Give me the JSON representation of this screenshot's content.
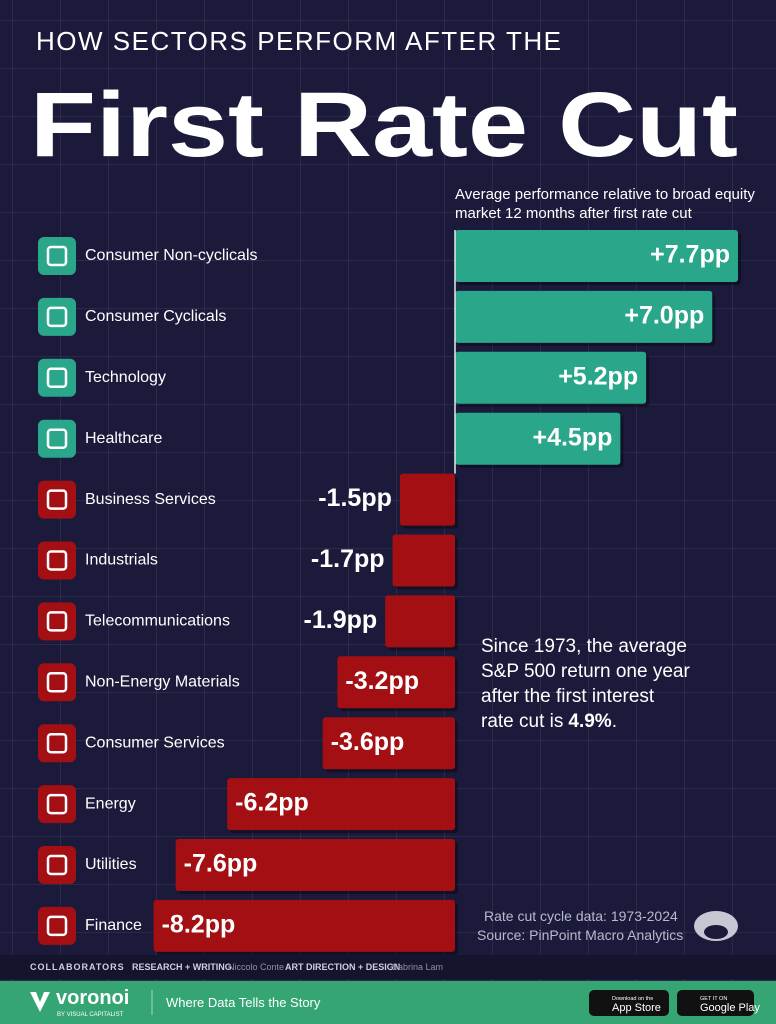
{
  "chart_data": {
    "type": "bar",
    "orientation": "horizontal",
    "kicker": "HOW SECTORS PERFORM AFTER THE",
    "title": "First Rate Cut",
    "subtitle": [
      "Average performance relative to broad equity",
      "market 12 months after first rate cut"
    ],
    "categories": [
      "Consumer Non-cyclicals",
      "Consumer Cyclicals",
      "Technology",
      "Healthcare",
      "Business Services",
      "Industrials",
      "Telecommunications",
      "Non-Energy Materials",
      "Consumer Services",
      "Energy",
      "Utilities",
      "Finance"
    ],
    "values": [
      7.7,
      7.0,
      5.2,
      4.5,
      -1.5,
      -1.7,
      -1.9,
      -3.2,
      -3.6,
      -6.2,
      -7.6,
      -8.2
    ],
    "value_labels": [
      "+7.7pp",
      "+7.0pp",
      "+5.2pp",
      "+4.5pp",
      "-1.5pp",
      "-1.7pp",
      "-1.9pp",
      "-3.2pp",
      "-3.6pp",
      "-6.2pp",
      "-7.6pp",
      "-8.2pp"
    ],
    "color_positive": "#2aa78a",
    "color_negative": "#a30f12",
    "annotation": {
      "lines": [
        "Since 1973, the average",
        "S&P 500 return one year",
        "after the first interest"
      ],
      "last_line": "rate cut is",
      "highlight": "4.9%",
      "end": "."
    },
    "source": [
      "Rate cut cycle data: 1973-2024",
      "Source: PinPoint Macro Analytics"
    ]
  },
  "footer": {
    "collaborators": "COLLABORATORS",
    "role_1": "RESEARCH + WRITING",
    "name_1": "Niccolo Conte",
    "role_2": "ART DIRECTION + DESIGN",
    "name_2": "Sabrina Lam",
    "brand": "voronoi",
    "brand_sub": "BY VISUAL CAPITALIST",
    "tagline": "Where Data Tells the Story",
    "app_store_top": "Download on the",
    "app_store": "App Store",
    "google_top": "GET IT ON",
    "google": "Google Play"
  }
}
